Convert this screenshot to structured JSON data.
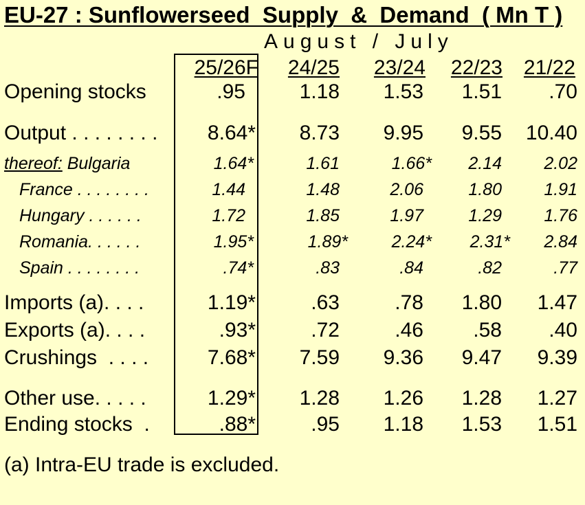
{
  "title": "EU-27 : Sunflowerseed  Supply  &  Demand  ( Mn T )",
  "period_label": "August / July",
  "footnote": "(a) Intra-EU trade is excluded.",
  "chart_data": {
    "type": "table",
    "columns": [
      "25/26F",
      "24/25",
      "23/24",
      "22/23",
      "21/22"
    ],
    "rows": [
      {
        "label": "Opening stocks",
        "values": [
          ".95",
          "1.18",
          "1.53",
          "1.51",
          ".70"
        ],
        "style": "main"
      },
      {
        "label": "Output . . . . . . . .",
        "values": [
          "8.64*",
          "8.73",
          "9.95",
          "9.55",
          "10.40"
        ],
        "style": "main"
      },
      {
        "label_prefix": "thereof:",
        "label": " Bulgaria",
        "values": [
          "1.64*",
          "1.61",
          "1.66*",
          "2.14",
          "2.02"
        ],
        "style": "sub"
      },
      {
        "label": "France . . . . . . . .",
        "values": [
          "1.44",
          "1.48",
          "2.06",
          "1.80",
          "1.91"
        ],
        "style": "sub2"
      },
      {
        "label": "Hungary . . . . . .",
        "values": [
          "1.72",
          "1.85",
          "1.97",
          "1.29",
          "1.76"
        ],
        "style": "sub2"
      },
      {
        "label": "Romania. . . . . .",
        "values": [
          "1.95*",
          "1.89*",
          "2.24*",
          "2.31*",
          "2.84"
        ],
        "style": "sub2"
      },
      {
        "label": "Spain . . . . . . . .",
        "values": [
          ".74*",
          ".83",
          ".84",
          ".82",
          ".77"
        ],
        "style": "sub2"
      },
      {
        "label": "Imports (a). . . .",
        "values": [
          "1.19*",
          ".63",
          ".78",
          "1.80",
          "1.47"
        ],
        "style": "main"
      },
      {
        "label": "Exports (a). . . .",
        "values": [
          ".93*",
          ".72",
          ".46",
          ".58",
          ".40"
        ],
        "style": "main"
      },
      {
        "label": "Crushings  . . . .",
        "values": [
          "7.68*",
          "7.59",
          "9.36",
          "9.47",
          "9.39"
        ],
        "style": "main"
      },
      {
        "label": "Other use. . . . .",
        "values": [
          "1.29*",
          "1.28",
          "1.26",
          "1.28",
          "1.27"
        ],
        "style": "main"
      },
      {
        "label": "Ending stocks  .",
        "values": [
          ".88*",
          ".95",
          "1.18",
          "1.53",
          "1.51"
        ],
        "style": "main"
      }
    ]
  }
}
